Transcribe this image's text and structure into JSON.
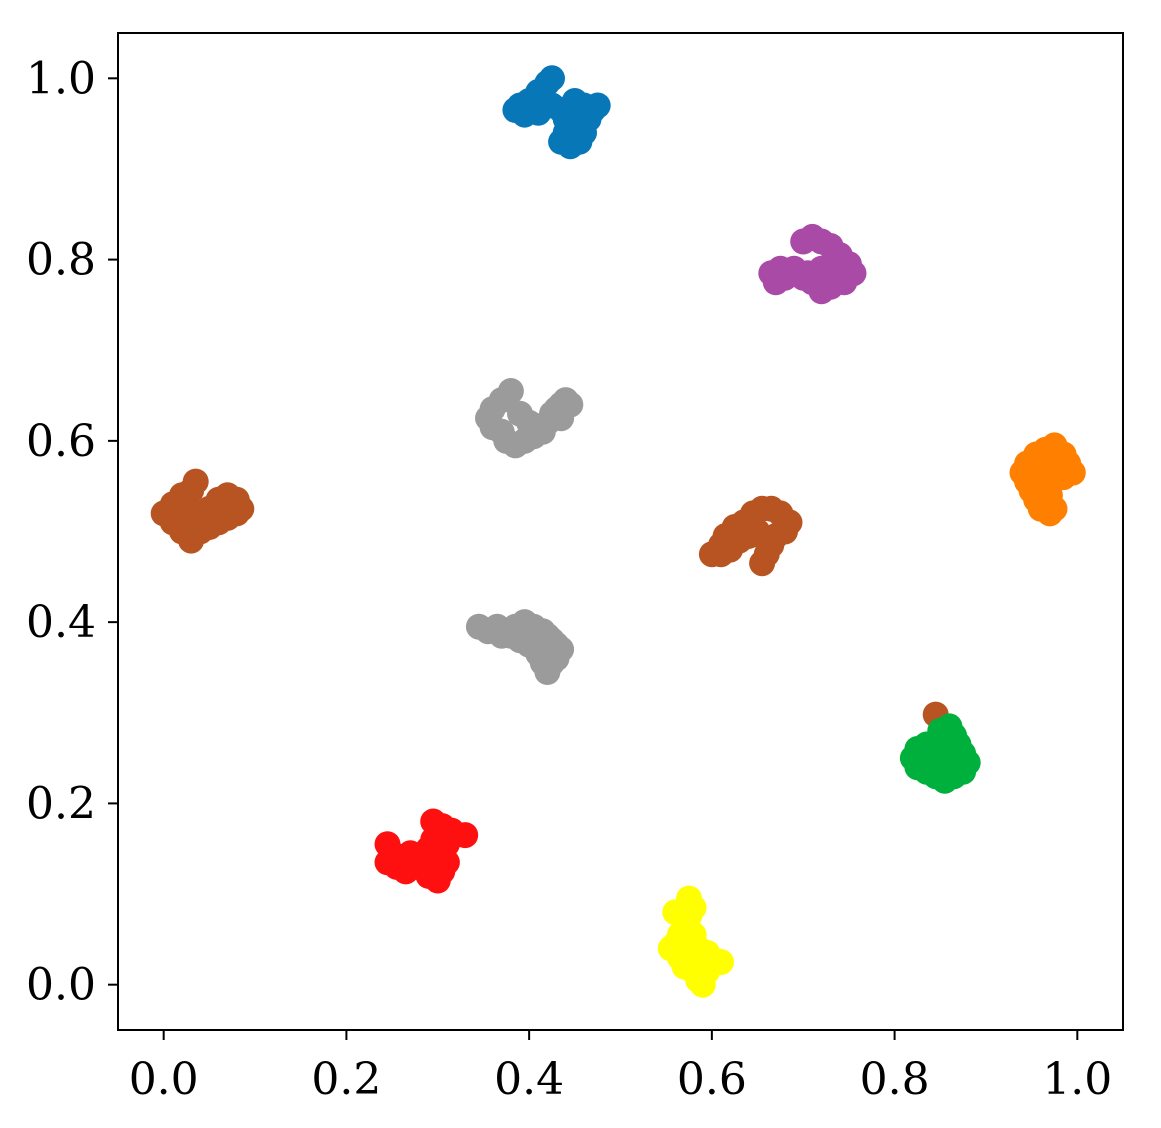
{
  "chart_data": {
    "type": "scatter",
    "title": "",
    "xlabel": "",
    "ylabel": "",
    "xlim": [
      -0.05,
      1.05
    ],
    "ylim": [
      -0.05,
      1.05
    ],
    "grid": false,
    "legend": "none",
    "x_ticks": [
      "0.0",
      "0.2",
      "0.4",
      "0.6",
      "0.8",
      "1.0"
    ],
    "y_ticks": [
      "0.0",
      "0.2",
      "0.4",
      "0.6",
      "0.8",
      "1.0"
    ],
    "colors": {
      "blue": "#0877b8",
      "purple": "#a94aa7",
      "gray": "#9b9b9b",
      "brown": "#b85422",
      "orange": "#ff8000",
      "green": "#00b03c",
      "red": "#ff1010",
      "yellow": "#ffff00"
    },
    "series": [
      {
        "color": "#0877b8",
        "points": [
          [
            0.425,
            1.0
          ],
          [
            0.42,
            0.995
          ],
          [
            0.41,
            0.985
          ],
          [
            0.4,
            0.975
          ],
          [
            0.39,
            0.97
          ],
          [
            0.385,
            0.965
          ],
          [
            0.395,
            0.96
          ],
          [
            0.41,
            0.962
          ],
          [
            0.425,
            0.97
          ],
          [
            0.435,
            0.965
          ],
          [
            0.445,
            0.96
          ],
          [
            0.45,
            0.975
          ],
          [
            0.46,
            0.97
          ],
          [
            0.47,
            0.965
          ],
          [
            0.475,
            0.97
          ],
          [
            0.465,
            0.955
          ],
          [
            0.455,
            0.945
          ],
          [
            0.44,
            0.94
          ],
          [
            0.435,
            0.93
          ],
          [
            0.445,
            0.925
          ],
          [
            0.455,
            0.93
          ],
          [
            0.46,
            0.94
          ],
          [
            0.45,
            0.955
          ],
          [
            0.44,
            0.955
          ]
        ]
      },
      {
        "color": "#a94aa7",
        "points": [
          [
            0.7,
            0.82
          ],
          [
            0.71,
            0.825
          ],
          [
            0.72,
            0.82
          ],
          [
            0.73,
            0.815
          ],
          [
            0.74,
            0.805
          ],
          [
            0.75,
            0.795
          ],
          [
            0.755,
            0.785
          ],
          [
            0.745,
            0.775
          ],
          [
            0.73,
            0.77
          ],
          [
            0.72,
            0.765
          ],
          [
            0.71,
            0.775
          ],
          [
            0.7,
            0.78
          ],
          [
            0.69,
            0.785
          ],
          [
            0.68,
            0.78
          ],
          [
            0.67,
            0.775
          ],
          [
            0.665,
            0.785
          ],
          [
            0.675,
            0.79
          ],
          [
            0.69,
            0.79
          ],
          [
            0.705,
            0.785
          ],
          [
            0.72,
            0.79
          ],
          [
            0.735,
            0.795
          ],
          [
            0.735,
            0.78
          ]
        ]
      },
      {
        "color": "#9b9b9b",
        "points": [
          [
            0.38,
            0.655
          ],
          [
            0.37,
            0.645
          ],
          [
            0.36,
            0.635
          ],
          [
            0.355,
            0.625
          ],
          [
            0.36,
            0.615
          ],
          [
            0.37,
            0.61
          ],
          [
            0.375,
            0.6
          ],
          [
            0.385,
            0.595
          ],
          [
            0.395,
            0.6
          ],
          [
            0.405,
            0.605
          ],
          [
            0.415,
            0.61
          ],
          [
            0.42,
            0.62
          ],
          [
            0.425,
            0.63
          ],
          [
            0.43,
            0.635
          ],
          [
            0.435,
            0.64
          ],
          [
            0.44,
            0.645
          ],
          [
            0.445,
            0.64
          ],
          [
            0.435,
            0.625
          ],
          [
            0.41,
            0.615
          ],
          [
            0.4,
            0.62
          ],
          [
            0.39,
            0.63
          ]
        ]
      },
      {
        "color": "#9b9b9b",
        "points": [
          [
            0.345,
            0.395
          ],
          [
            0.355,
            0.39
          ],
          [
            0.365,
            0.395
          ],
          [
            0.375,
            0.39
          ],
          [
            0.385,
            0.395
          ],
          [
            0.395,
            0.4
          ],
          [
            0.405,
            0.395
          ],
          [
            0.415,
            0.39
          ],
          [
            0.42,
            0.385
          ],
          [
            0.425,
            0.38
          ],
          [
            0.43,
            0.375
          ],
          [
            0.435,
            0.37
          ],
          [
            0.43,
            0.36
          ],
          [
            0.425,
            0.355
          ],
          [
            0.42,
            0.345
          ],
          [
            0.415,
            0.355
          ],
          [
            0.41,
            0.365
          ],
          [
            0.4,
            0.375
          ],
          [
            0.39,
            0.38
          ],
          [
            0.38,
            0.385
          ],
          [
            0.37,
            0.385
          ]
        ]
      },
      {
        "color": "#b85422",
        "points": [
          [
            0.035,
            0.555
          ],
          [
            0.03,
            0.545
          ],
          [
            0.02,
            0.54
          ],
          [
            0.01,
            0.53
          ],
          [
            0.0,
            0.52
          ],
          [
            0.01,
            0.51
          ],
          [
            0.02,
            0.5
          ],
          [
            0.03,
            0.49
          ],
          [
            0.04,
            0.5
          ],
          [
            0.05,
            0.505
          ],
          [
            0.06,
            0.51
          ],
          [
            0.07,
            0.515
          ],
          [
            0.08,
            0.52
          ],
          [
            0.085,
            0.525
          ],
          [
            0.08,
            0.535
          ],
          [
            0.07,
            0.54
          ],
          [
            0.06,
            0.535
          ],
          [
            0.05,
            0.525
          ],
          [
            0.045,
            0.515
          ],
          [
            0.035,
            0.52
          ],
          [
            0.025,
            0.53
          ]
        ]
      },
      {
        "color": "#b85422",
        "points": [
          [
            0.6,
            0.475
          ],
          [
            0.61,
            0.485
          ],
          [
            0.615,
            0.495
          ],
          [
            0.625,
            0.505
          ],
          [
            0.635,
            0.51
          ],
          [
            0.645,
            0.52
          ],
          [
            0.655,
            0.525
          ],
          [
            0.665,
            0.525
          ],
          [
            0.675,
            0.52
          ],
          [
            0.685,
            0.51
          ],
          [
            0.68,
            0.5
          ],
          [
            0.67,
            0.495
          ],
          [
            0.665,
            0.485
          ],
          [
            0.66,
            0.475
          ],
          [
            0.655,
            0.465
          ],
          [
            0.66,
            0.49
          ],
          [
            0.65,
            0.5
          ],
          [
            0.64,
            0.495
          ],
          [
            0.63,
            0.49
          ],
          [
            0.62,
            0.48
          ],
          [
            0.61,
            0.475
          ]
        ]
      },
      {
        "color": "#b85422",
        "points": [
          [
            0.845,
            0.298
          ]
        ]
      },
      {
        "color": "#ff8000",
        "points": [
          [
            0.975,
            0.595
          ],
          [
            0.965,
            0.59
          ],
          [
            0.955,
            0.585
          ],
          [
            0.945,
            0.575
          ],
          [
            0.94,
            0.565
          ],
          [
            0.945,
            0.555
          ],
          [
            0.95,
            0.545
          ],
          [
            0.955,
            0.535
          ],
          [
            0.96,
            0.525
          ],
          [
            0.97,
            0.52
          ],
          [
            0.975,
            0.525
          ],
          [
            0.97,
            0.54
          ],
          [
            0.965,
            0.555
          ],
          [
            0.965,
            0.57
          ],
          [
            0.975,
            0.58
          ],
          [
            0.985,
            0.585
          ],
          [
            0.99,
            0.575
          ],
          [
            0.995,
            0.565
          ],
          [
            0.985,
            0.56
          ],
          [
            0.98,
            0.57
          ]
        ]
      },
      {
        "color": "#00b03c",
        "points": [
          [
            0.86,
            0.285
          ],
          [
            0.865,
            0.275
          ],
          [
            0.87,
            0.265
          ],
          [
            0.875,
            0.255
          ],
          [
            0.88,
            0.245
          ],
          [
            0.875,
            0.235
          ],
          [
            0.865,
            0.23
          ],
          [
            0.855,
            0.225
          ],
          [
            0.845,
            0.23
          ],
          [
            0.835,
            0.235
          ],
          [
            0.825,
            0.24
          ],
          [
            0.82,
            0.25
          ],
          [
            0.825,
            0.26
          ],
          [
            0.835,
            0.265
          ],
          [
            0.84,
            0.255
          ],
          [
            0.85,
            0.245
          ],
          [
            0.86,
            0.24
          ],
          [
            0.87,
            0.25
          ],
          [
            0.865,
            0.26
          ],
          [
            0.855,
            0.27
          ],
          [
            0.85,
            0.28
          ]
        ]
      },
      {
        "color": "#ff1010",
        "points": [
          [
            0.245,
            0.155
          ],
          [
            0.25,
            0.145
          ],
          [
            0.245,
            0.135
          ],
          [
            0.255,
            0.13
          ],
          [
            0.265,
            0.125
          ],
          [
            0.275,
            0.13
          ],
          [
            0.285,
            0.14
          ],
          [
            0.29,
            0.15
          ],
          [
            0.295,
            0.16
          ],
          [
            0.3,
            0.17
          ],
          [
            0.295,
            0.18
          ],
          [
            0.305,
            0.175
          ],
          [
            0.315,
            0.17
          ],
          [
            0.33,
            0.165
          ],
          [
            0.31,
            0.155
          ],
          [
            0.305,
            0.145
          ],
          [
            0.31,
            0.135
          ],
          [
            0.305,
            0.125
          ],
          [
            0.3,
            0.115
          ],
          [
            0.29,
            0.12
          ],
          [
            0.28,
            0.135
          ],
          [
            0.27,
            0.145
          ],
          [
            0.26,
            0.14
          ]
        ]
      },
      {
        "color": "#ffff00",
        "points": [
          [
            0.575,
            0.095
          ],
          [
            0.58,
            0.085
          ],
          [
            0.575,
            0.075
          ],
          [
            0.57,
            0.065
          ],
          [
            0.565,
            0.055
          ],
          [
            0.56,
            0.045
          ],
          [
            0.555,
            0.04
          ],
          [
            0.565,
            0.03
          ],
          [
            0.57,
            0.02
          ],
          [
            0.58,
            0.015
          ],
          [
            0.585,
            0.005
          ],
          [
            0.59,
            0.0
          ],
          [
            0.595,
            0.015
          ],
          [
            0.6,
            0.025
          ],
          [
            0.61,
            0.025
          ],
          [
            0.595,
            0.035
          ],
          [
            0.585,
            0.04
          ],
          [
            0.58,
            0.055
          ],
          [
            0.57,
            0.075
          ],
          [
            0.56,
            0.08
          ]
        ]
      }
    ]
  }
}
